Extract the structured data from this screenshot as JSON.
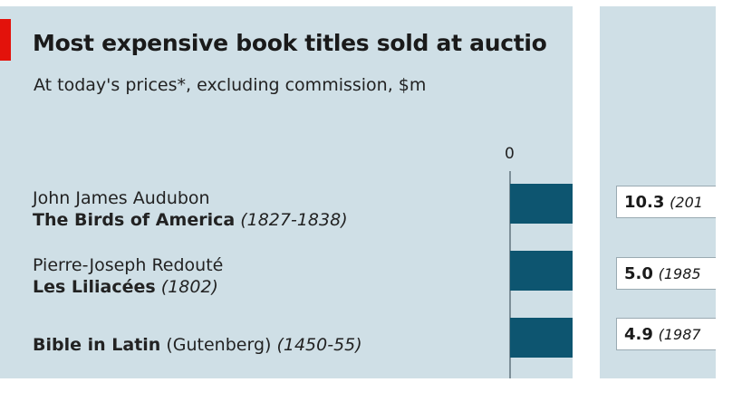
{
  "chart_data": {
    "type": "bar",
    "title": "Most expensive book titles sold at auctio",
    "subtitle": "At today's prices*, excluding commission, $m",
    "axis": {
      "tick_labels": [
        "0"
      ],
      "min": 0
    },
    "categories": [
      {
        "author": "John James Audubon",
        "book": "The Birds of America",
        "book_years": "(1827-1838)",
        "value": 10.3,
        "value_label": "10.3",
        "sale_year_label": "(201"
      },
      {
        "author": "Pierre-Joseph Redouté",
        "book": "Les Liliacées",
        "book_years": "(1802)",
        "value": 5.0,
        "value_label": "5.0",
        "sale_year_label": "(1985"
      },
      {
        "author": "",
        "book": "Bible in Latin",
        "book_note": "(Gutenberg)",
        "book_years": "(1450-55)",
        "value": 4.9,
        "value_label": "4.9",
        "sale_year_label": "(1987"
      }
    ],
    "colors": {
      "bar": "#0d5570",
      "background": "#cfdfe6",
      "accent": "#e3120b"
    }
  }
}
